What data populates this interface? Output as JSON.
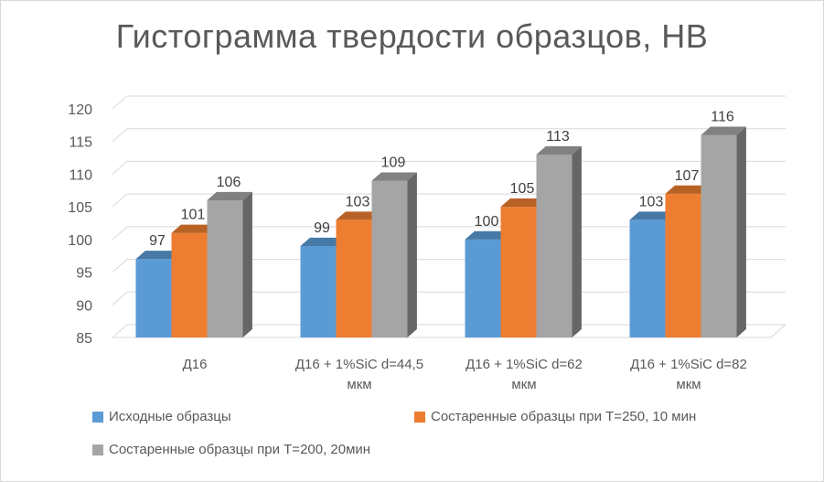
{
  "chart_data": {
    "type": "bar",
    "title": "Гистограмма твердости образцов, НВ",
    "categories": [
      [
        "Д16"
      ],
      [
        "Д16 + 1%SiC d=44,5",
        "мкм"
      ],
      [
        "Д16 + 1%SiC d=62",
        "мкм"
      ],
      [
        "Д16 + 1%SiC d=82",
        "мкм"
      ]
    ],
    "series": [
      {
        "name": "Исходные образцы",
        "values": [
          97,
          99,
          100,
          103
        ],
        "color": "#5b9bd5"
      },
      {
        "name": "Состаренные образцы при Т=250, 10 мин",
        "values": [
          101,
          103,
          105,
          107
        ],
        "color": "#ed7d31"
      },
      {
        "name": "Состаренные образцы при Т=200, 20мин",
        "values": [
          106,
          109,
          113,
          116
        ],
        "color": "#a5a5a5"
      }
    ],
    "ylim": [
      85,
      120
    ],
    "yticks": [
      85,
      90,
      95,
      100,
      105,
      110,
      115,
      120
    ],
    "grid": true,
    "legend_position": "bottom",
    "style": "3d-clustered-column"
  }
}
